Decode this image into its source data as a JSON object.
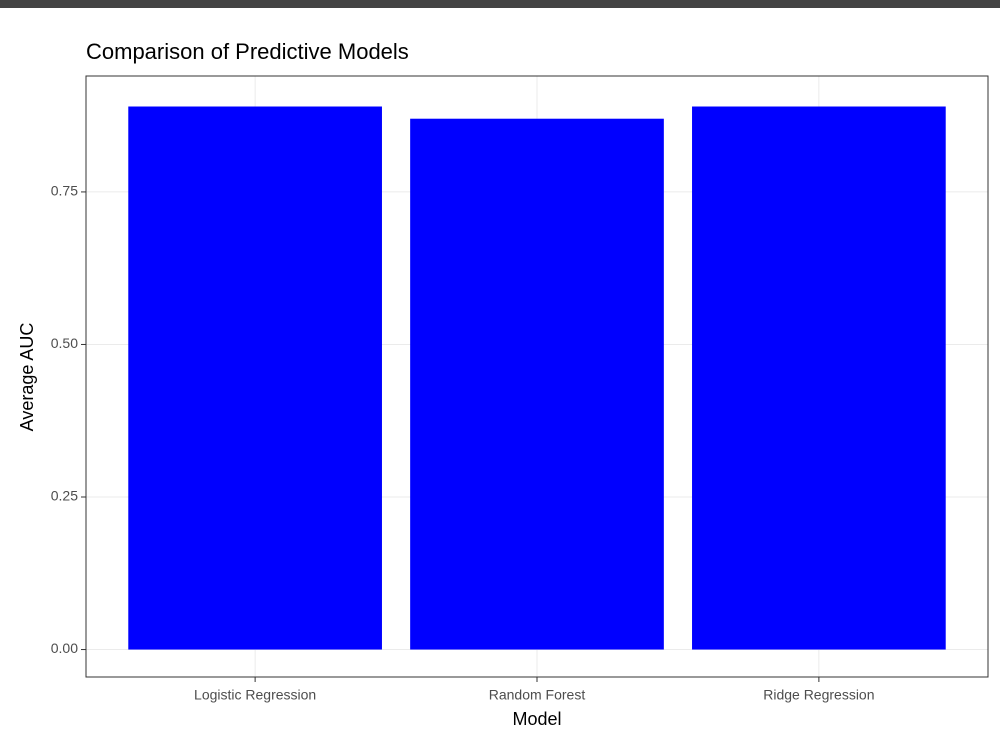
{
  "chart_data": {
    "type": "bar",
    "title": "Comparison of Predictive Models",
    "x_label": "Model",
    "y_label": "Average AUC",
    "categories": [
      "Logistic Regression",
      "Random Forest",
      "Ridge Regression"
    ],
    "values": [
      0.89,
      0.87,
      0.89
    ],
    "color": "#0000ff",
    "ylim": [
      -0.045,
      0.94
    ],
    "yticks": [
      {
        "value": 0,
        "label": "0.00"
      },
      {
        "value": 0.25,
        "label": "0.25"
      },
      {
        "value": 0.5,
        "label": "0.50"
      },
      {
        "value": 0.75,
        "label": "0.75"
      }
    ],
    "grid": true
  }
}
